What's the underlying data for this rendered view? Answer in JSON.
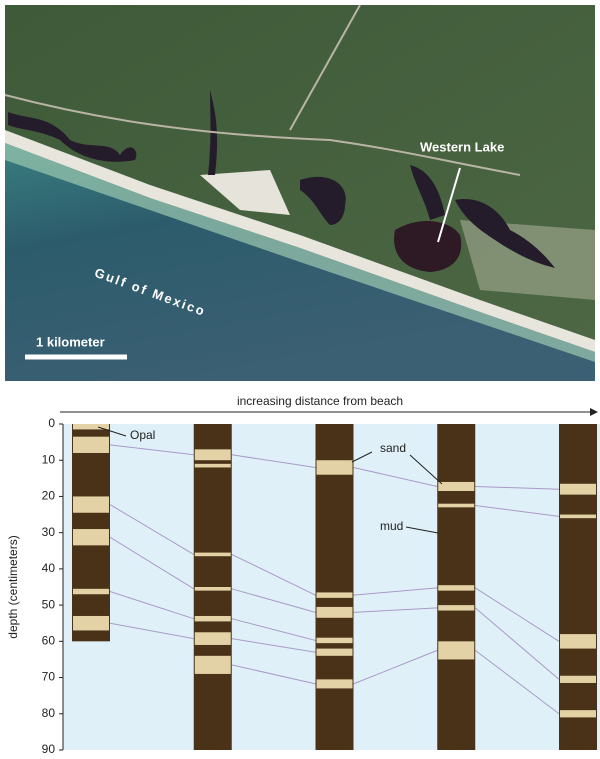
{
  "image": {
    "lake_label": "Western Lake",
    "sea_label": "Gulf of Mexico",
    "scale_label": "1 kilometer"
  },
  "chart_data": {
    "type": "strat-column",
    "x_label": "increasing distance from beach",
    "y_label": "depth (centimeters)",
    "ylim": [
      0,
      90
    ],
    "yticks": [
      0,
      10,
      20,
      30,
      40,
      50,
      60,
      70,
      80,
      90
    ],
    "annotations": [
      "Opal",
      "sand",
      "mud"
    ],
    "mud_color": "#4a3218",
    "sand_color": "#e3d2a6",
    "background": "#dff0f8",
    "series": [
      {
        "bottom": 60,
        "values": [
          [
            0,
            1.5
          ],
          [
            3.5,
            8
          ],
          [
            20,
            24.5
          ],
          [
            29,
            33.5
          ],
          [
            45.5,
            47
          ],
          [
            53,
            57
          ]
        ]
      },
      {
        "bottom": 90,
        "values": [
          [
            7,
            10
          ],
          [
            11,
            12
          ],
          [
            35.5,
            36.5
          ],
          [
            45,
            46
          ],
          [
            53,
            54.5
          ],
          [
            57.5,
            61
          ],
          [
            64,
            69
          ]
        ]
      },
      {
        "bottom": 90,
        "values": [
          [
            10,
            14
          ],
          [
            46.5,
            48
          ],
          [
            50.5,
            53.5
          ],
          [
            59,
            60.5
          ],
          [
            62,
            64
          ],
          [
            70.5,
            73
          ]
        ]
      },
      {
        "bottom": 90,
        "values": [
          [
            16,
            18.5
          ],
          [
            22,
            23
          ],
          [
            44.5,
            46
          ],
          [
            50,
            51.5
          ],
          [
            60,
            65
          ]
        ]
      },
      {
        "bottom": 90,
        "values": [
          [
            16.5,
            19.5
          ],
          [
            25,
            26
          ],
          [
            58,
            62
          ],
          [
            69.5,
            71.5
          ],
          [
            79,
            81
          ]
        ]
      }
    ]
  }
}
